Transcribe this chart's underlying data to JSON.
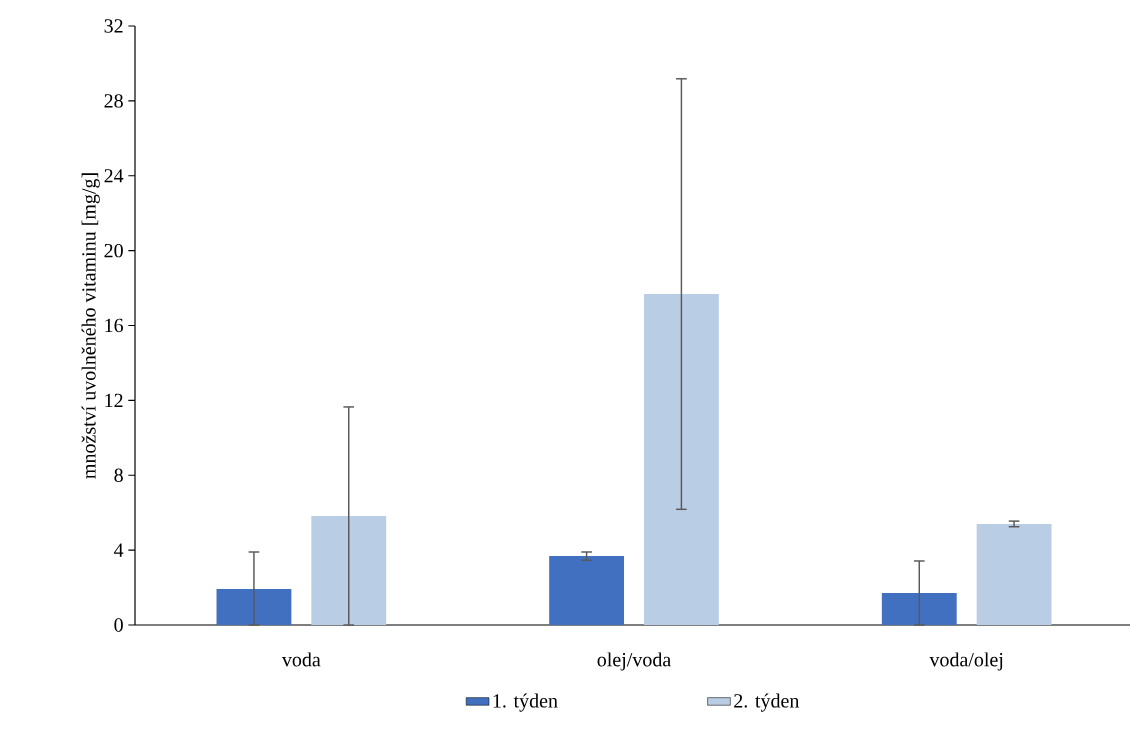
{
  "chart_data": {
    "type": "bar",
    "ylabel": "množství uvolněného vitaminu [mg/g]",
    "categories": [
      "voda",
      "olej/voda",
      "voda/olej"
    ],
    "ylim": [
      0,
      32
    ],
    "yticks": [
      0,
      4,
      8,
      12,
      16,
      20,
      24,
      28,
      32
    ],
    "legend": "bottom",
    "series": [
      {
        "name": "1. týden",
        "color": "#4170c0",
        "values": [
          1.92,
          3.68,
          1.71
        ],
        "errors": [
          [
            0,
            3.9
          ],
          0.22,
          [
            0,
            3.42
          ]
        ]
      },
      {
        "name": "2. týden",
        "color": "#b9cde5",
        "values": [
          5.82,
          17.68,
          5.4
        ],
        "errors": [
          [
            0,
            11.65
          ],
          11.5,
          0.15
        ]
      }
    ]
  }
}
